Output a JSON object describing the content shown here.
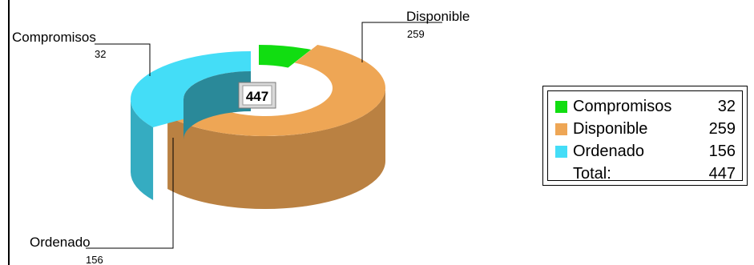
{
  "chart_data": {
    "type": "pie",
    "variant": "3d-donut",
    "series": [
      {
        "name": "Compromisos",
        "value": 32,
        "color": "#11dd11"
      },
      {
        "name": "Disponible",
        "value": 259,
        "color": "#eea655"
      },
      {
        "name": "Ordenado",
        "value": 156,
        "color": "#44ddf7"
      }
    ],
    "center_total": "447",
    "legend": {
      "placement": "right",
      "rows": [
        {
          "label": "Compromisos",
          "value": "32",
          "color": "#11dd11"
        },
        {
          "label": "Disponible",
          "value": "259",
          "color": "#eea655"
        },
        {
          "label": "Ordenado",
          "value": "156",
          "color": "#44ddf7"
        }
      ],
      "total_label": "Total:",
      "total_value": "447"
    }
  }
}
